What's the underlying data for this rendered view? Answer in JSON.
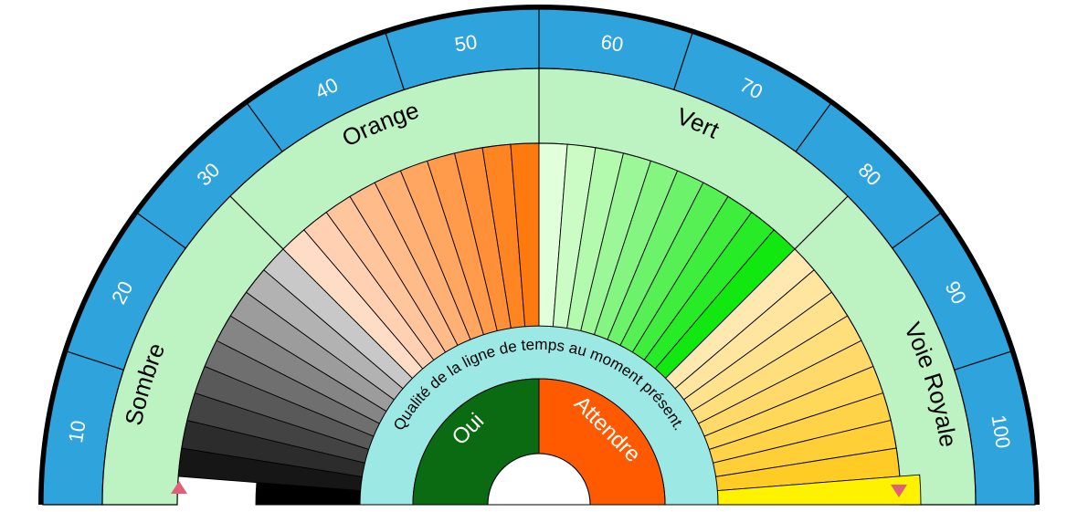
{
  "scale_labels": [
    "10",
    "20",
    "30",
    "40",
    "50",
    "60",
    "70",
    "80",
    "90",
    "100"
  ],
  "categories": [
    "Sombre",
    "Orange",
    "Vert",
    "Voie Royale"
  ],
  "inner_ring_text": "Qualité de la ligne de temps au moment présent.",
  "decision": {
    "yes": "Oui",
    "wait": "Attendre"
  },
  "colors": {
    "outer_band": "#2ea3dc",
    "category_band": "#bdf2c2",
    "inner_ring": "#9be8e5",
    "yes": "#0b6b12",
    "wait": "#ff5a00",
    "border": "#000000",
    "markers": "#e0607a"
  },
  "segment_count_per_category": 10,
  "markers": [
    "triangle-up",
    "triangle-down"
  ]
}
